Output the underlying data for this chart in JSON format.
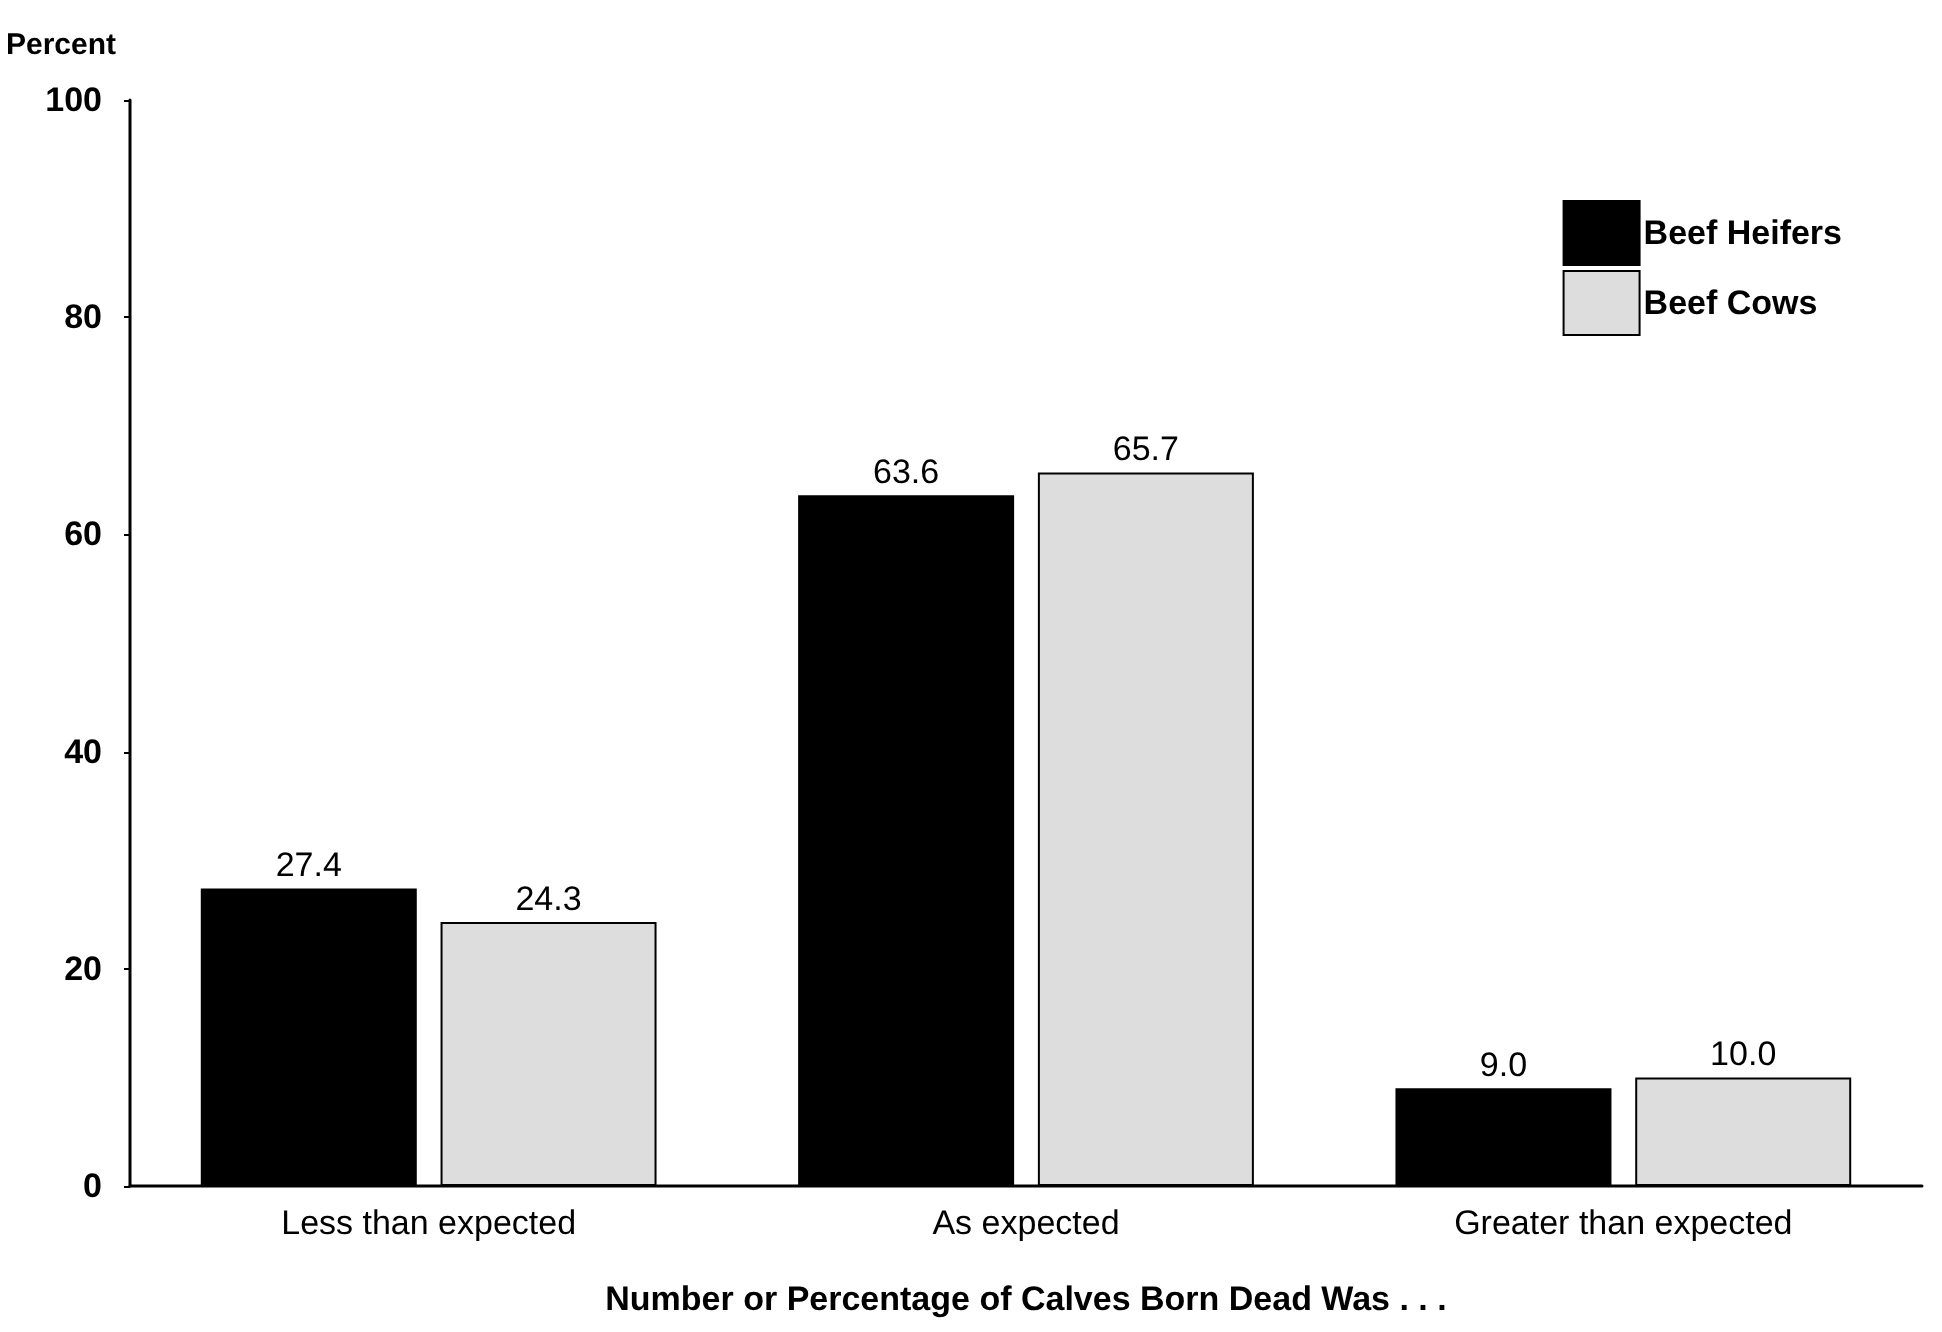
{
  "chart_data": {
    "type": "bar",
    "ylabel": "Percent",
    "xlabel": "Number or Percentage of Calves Born Dead Was . . .",
    "categories": [
      "Less than expected",
      "As expected",
      "Greater than expected"
    ],
    "series": [
      {
        "name": "Beef Heifers",
        "color": "#000000",
        "values": [
          27.4,
          63.6,
          9.0
        ],
        "value_labels": [
          "27.4",
          "63.6",
          "9.0"
        ]
      },
      {
        "name": "Beef Cows",
        "color": "#dddddd",
        "values": [
          24.3,
          65.7,
          10.0
        ],
        "value_labels": [
          "24.3",
          "65.7",
          "10.0"
        ]
      }
    ],
    "ylim": [
      0,
      100
    ],
    "yticks": [
      0,
      20,
      40,
      60,
      80,
      100
    ],
    "grid": false,
    "legend": "top right"
  }
}
